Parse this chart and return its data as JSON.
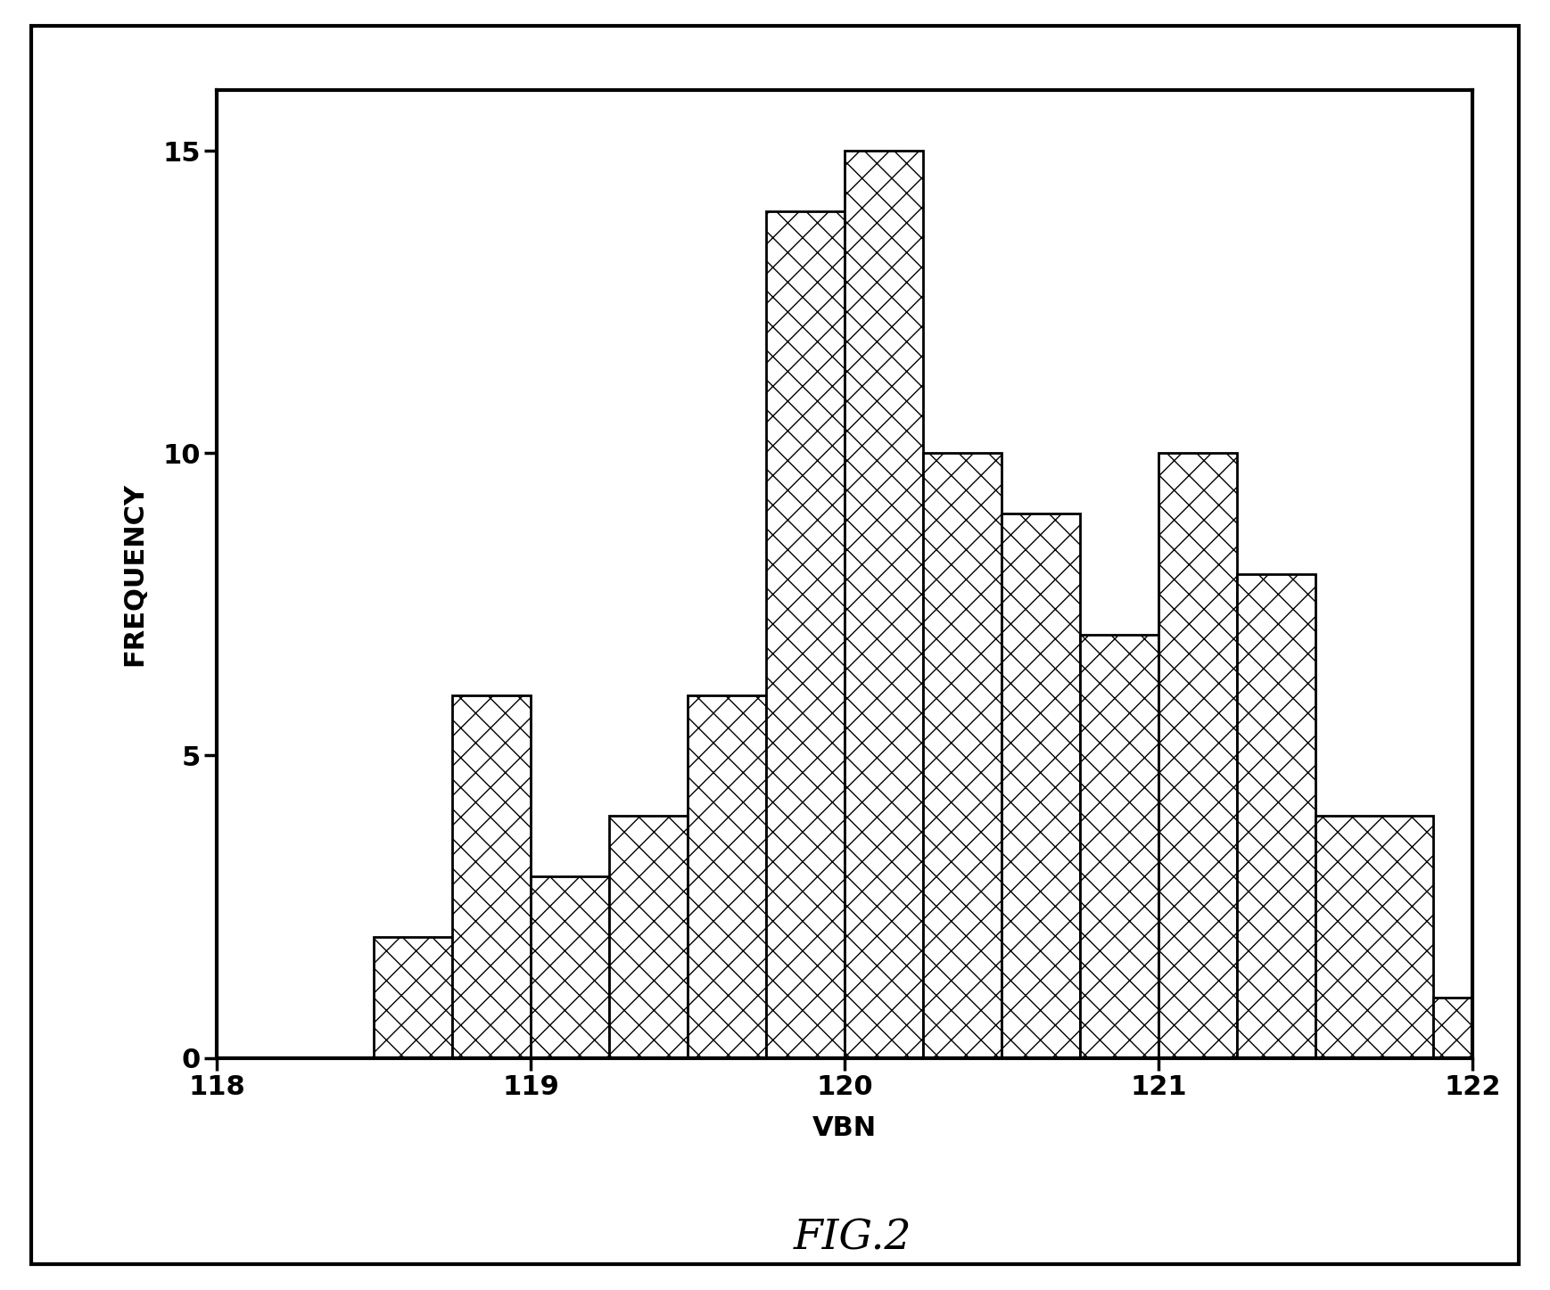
{
  "bin_edges": [
    118.5,
    118.75,
    119.0,
    119.25,
    119.5,
    119.75,
    120.0,
    120.25,
    120.5,
    120.75,
    121.0,
    121.25,
    121.5,
    121.875,
    122.0
  ],
  "bar_heights": [
    2,
    6,
    3,
    4,
    6,
    14,
    15,
    10,
    9,
    7,
    10,
    8,
    4,
    1
  ],
  "xlim": [
    118.0,
    122.0
  ],
  "ylim": [
    0,
    16
  ],
  "yticks": [
    0,
    5,
    10,
    15
  ],
  "xticks": [
    118,
    119,
    120,
    121,
    122
  ],
  "xlabel": "VBN",
  "ylabel": "FREQUENCY",
  "fig_caption": "FIG.2",
  "hatch_pattern": "/\\",
  "bar_color": "white",
  "bar_edgecolor": "black",
  "background_color": "white",
  "axis_label_fontsize": 22,
  "tick_fontsize": 22,
  "caption_fontsize": 34,
  "spine_linewidth": 3.0,
  "tick_linewidth": 2.5,
  "bar_linewidth": 2.0
}
